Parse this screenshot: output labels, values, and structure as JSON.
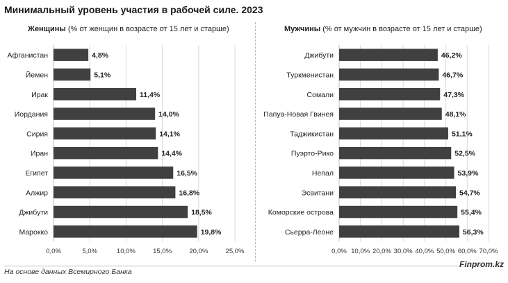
{
  "title": "Минимальный уровень участия в рабочей силе. 2023",
  "footer_source": "На основе данных Всемирного Банка",
  "footer_brand": "Finprom.kz",
  "colors": {
    "bar": "#404040",
    "divider": "#e8c200",
    "grid": "#d9d9d9"
  },
  "chart_data": [
    {
      "type": "bar",
      "orientation": "horizontal",
      "subtitle_bold": "Женщины",
      "subtitle_rest": " (% от женщин в возрасте от 15 лет и старше)",
      "categories": [
        "Афганистан",
        "Йемен",
        "Ирак",
        "Иордания",
        "Сирия",
        "Иран",
        "Египет",
        "Алжир",
        "Джибути",
        "Марокко"
      ],
      "values": [
        4.8,
        5.1,
        11.4,
        14.0,
        14.1,
        14.4,
        16.5,
        16.8,
        18.5,
        19.8
      ],
      "value_labels": [
        "4,8%",
        "5,1%",
        "11,4%",
        "14,0%",
        "14,1%",
        "14,4%",
        "16,5%",
        "16,8%",
        "18,5%",
        "19,8%"
      ],
      "xlim": [
        0,
        25
      ],
      "ticks": [
        0,
        5,
        10,
        15,
        20,
        25
      ],
      "tick_labels": [
        "0,0%",
        "5,0%",
        "10,0%",
        "15,0%",
        "20,0%",
        "25,0%"
      ],
      "grid": true
    },
    {
      "type": "bar",
      "orientation": "horizontal",
      "subtitle_bold": "Мужчины",
      "subtitle_rest": " (% от мужчин в возрасте от 15 лет и старше)",
      "categories": [
        "Джибути",
        "Туркменистан",
        "Сомали",
        "Папуа-Новая Гвинея",
        "Таджикистан",
        "Пуэрто-Рико",
        "Непал",
        "Эсвитани",
        "Коморские острова",
        "Сьерра-Леоне"
      ],
      "values": [
        46.2,
        46.7,
        47.3,
        48.1,
        51.1,
        52.5,
        53.9,
        54.7,
        55.4,
        56.3
      ],
      "value_labels": [
        "46,2%",
        "46,7%",
        "47,3%",
        "48,1%",
        "51,1%",
        "52,5%",
        "53,9%",
        "54,7%",
        "55,4%",
        "56,3%"
      ],
      "xlim": [
        0,
        70
      ],
      "ticks": [
        0,
        10,
        20,
        30,
        40,
        50,
        60,
        70
      ],
      "tick_labels": [
        "0,0%",
        "10,0%",
        "20,0%",
        "30,0%",
        "40,0%",
        "50,0%",
        "60,0%",
        "70,0%"
      ],
      "grid": true
    }
  ]
}
